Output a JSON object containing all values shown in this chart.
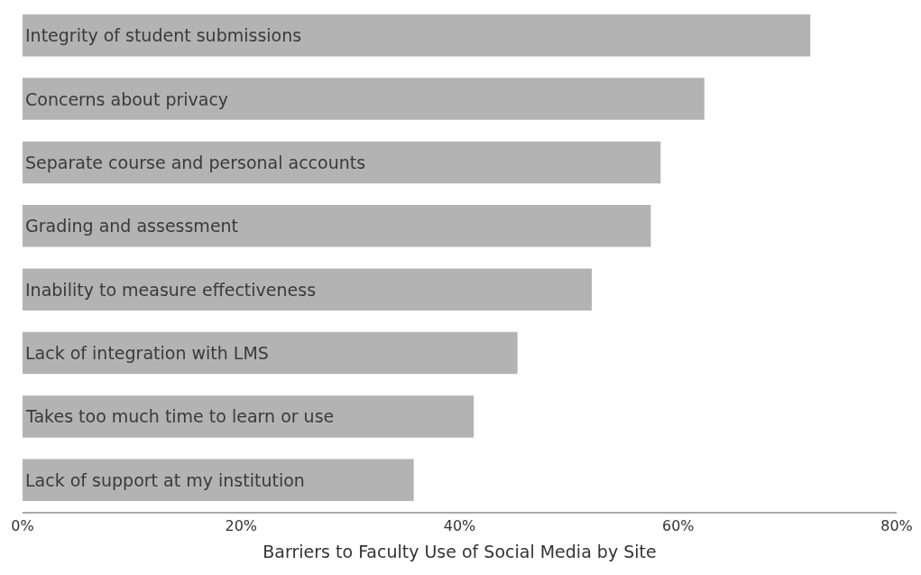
{
  "chart_data": {
    "type": "bar",
    "orientation": "horizontal",
    "xlabel": "Barriers to Faculty Use of Social Media by Site",
    "categories": [
      "Integrity of student submissions",
      "Concerns about privacy",
      "Separate course and personal accounts",
      "Grading and assessment",
      "Inability to measure effectiveness",
      "Lack of integration with LMS",
      "Takes too much time to learn or use",
      "Lack of support at my institution"
    ],
    "values": [
      72.1,
      62.4,
      58.4,
      57.5,
      52.1,
      45.3,
      41.3,
      35.8
    ],
    "color": "#b3b3b3",
    "xlim": [
      0,
      80
    ],
    "xticks": [
      {
        "value": 0,
        "label": "0%"
      },
      {
        "value": 20,
        "label": "20%"
      },
      {
        "value": 40,
        "label": "40%"
      },
      {
        "value": 60,
        "label": "60%"
      },
      {
        "value": 80,
        "label": "80%"
      }
    ]
  }
}
